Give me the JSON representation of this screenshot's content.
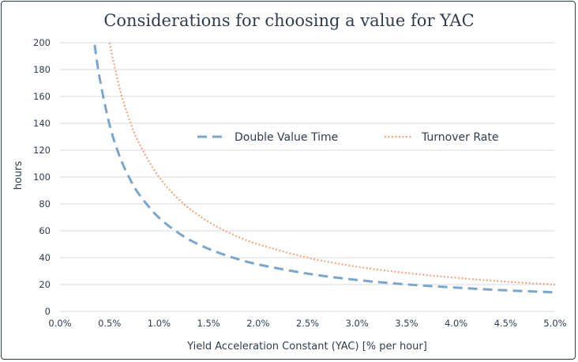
{
  "chart_data": {
    "type": "line",
    "title": "Considerations for choosing a value for YAC",
    "xlabel": "Yield Acceleration Constant (YAC) [% per hour]",
    "ylabel": "hours",
    "xlim": [
      0,
      5
    ],
    "ylim": [
      0,
      200
    ],
    "x_ticks": [
      "0.0%",
      "0.5%",
      "1.0%",
      "1.5%",
      "2.0%",
      "2.5%",
      "3.0%",
      "3.5%",
      "4.0%",
      "4.5%",
      "5.0%"
    ],
    "y_ticks": [
      "0",
      "20",
      "40",
      "60",
      "80",
      "100",
      "120",
      "140",
      "160",
      "180",
      "200"
    ],
    "grid": true,
    "legend_position": "center-right",
    "series": [
      {
        "name": "Double Value Time",
        "color": "#7aa6cc",
        "style": "dashed",
        "x": [
          0.35,
          0.4,
          0.5,
          0.6,
          0.7,
          0.8,
          1.0,
          1.25,
          1.5,
          1.75,
          2.0,
          2.5,
          3.0,
          3.5,
          4.0,
          4.5,
          5.0
        ],
        "y": [
          198.4,
          173.6,
          139.0,
          115.9,
          99.4,
          87.0,
          69.7,
          55.8,
          46.6,
          40.0,
          35.0,
          28.1,
          23.4,
          20.1,
          17.7,
          15.7,
          14.2
        ]
      },
      {
        "name": "Turnover Rate",
        "color": "#f4a582",
        "style": "dotted",
        "x": [
          0.5,
          0.6,
          0.7,
          0.8,
          1.0,
          1.25,
          1.5,
          1.75,
          2.0,
          2.5,
          3.0,
          3.5,
          4.0,
          4.5,
          5.0
        ],
        "y": [
          200.0,
          166.7,
          142.9,
          125.0,
          100.0,
          80.0,
          66.7,
          57.1,
          50.0,
          40.0,
          33.3,
          28.6,
          25.0,
          22.2,
          20.0
        ]
      }
    ]
  }
}
